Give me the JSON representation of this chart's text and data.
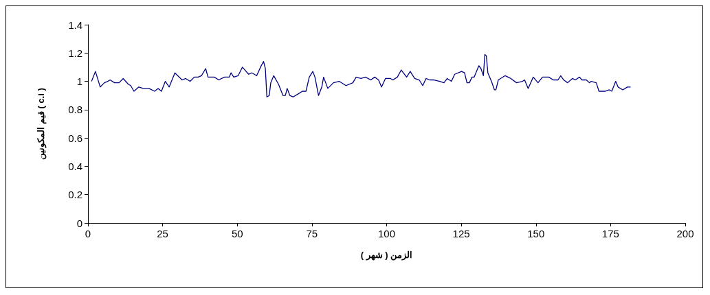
{
  "chart_data": {
    "type": "line",
    "xlabel": "الزمن ( شهر )",
    "ylabel": "قيم المكونين ( c.i )",
    "xlim": [
      0,
      200
    ],
    "xticks": [
      0,
      25,
      50,
      75,
      100,
      125,
      150,
      175,
      200
    ],
    "ylim": [
      0,
      1.4
    ],
    "yticks": [
      0,
      0.2,
      0.4,
      0.6,
      0.8,
      1,
      1.2,
      1.4
    ],
    "grid": false,
    "marker": "none",
    "line_style": "solid",
    "series": [
      {
        "color": "#000080",
        "x": [
          1.2,
          2.5,
          4.1,
          5.5,
          6.6,
          7.4,
          8.9,
          10.4,
          11.8,
          13.5,
          14.3,
          15.4,
          17,
          18.5,
          20.4,
          22.3,
          23.5,
          24.6,
          25.9,
          27.2,
          29.1,
          31.5,
          32.7,
          34.2,
          35.6,
          36.9,
          38,
          39.4,
          40.2,
          42.3,
          43.8,
          45.7,
          47.3,
          47.9,
          48.8,
          50.3,
          51.7,
          53.8,
          54.9,
          56.5,
          58,
          58.8,
          59.4,
          59.9,
          60.7,
          61.2,
          62.2,
          63.8,
          65.3,
          66.1,
          66.7,
          67.6,
          68.7,
          70.3,
          71.8,
          73,
          74.1,
          75.3,
          76,
          77.2,
          78.3,
          78.9,
          80.3,
          82.2,
          84.1,
          86.4,
          88.7,
          89.8,
          91.4,
          92.9,
          94.7,
          96,
          97.3,
          98.3,
          99.6,
          101.3,
          102.1,
          103.6,
          104.9,
          106.7,
          107.9,
          109.4,
          110.9,
          112.1,
          113.2,
          114.4,
          115.9,
          117.8,
          119.2,
          120.3,
          121.7,
          122.8,
          125.1,
          126.1,
          126.9,
          127.7,
          128.6,
          129.3,
          130.9,
          131.6,
          132.4,
          132.9,
          133.4,
          133.9,
          135.1,
          136.1,
          136.6,
          137.4,
          139.7,
          141.6,
          143.5,
          145.5,
          146.2,
          147.4,
          149.1,
          150.7,
          152.2,
          154.3,
          155.8,
          157.4,
          158.3,
          159.3,
          160.6,
          162.2,
          163.2,
          164.6,
          165.4,
          166.9,
          167.9,
          168.5,
          170.2,
          171.1,
          173.1,
          174.6,
          175.4,
          176.7,
          177.5,
          179.1,
          180.6,
          181.7
        ],
        "values": [
          1.0,
          1.07,
          0.96,
          0.99,
          1.0,
          1.01,
          0.99,
          0.99,
          1.02,
          0.98,
          0.97,
          0.93,
          0.96,
          0.95,
          0.95,
          0.93,
          0.95,
          0.93,
          1.0,
          0.96,
          1.06,
          1.01,
          1.02,
          1.0,
          1.03,
          1.03,
          1.04,
          1.09,
          1.03,
          1.03,
          1.01,
          1.03,
          1.03,
          1.06,
          1.03,
          1.04,
          1.1,
          1.05,
          1.06,
          1.04,
          1.11,
          1.14,
          1.09,
          0.89,
          0.9,
          0.99,
          1.04,
          0.98,
          0.9,
          0.9,
          0.95,
          0.9,
          0.89,
          0.91,
          0.93,
          0.93,
          1.03,
          1.07,
          1.03,
          0.9,
          0.96,
          1.03,
          0.95,
          0.99,
          1.0,
          0.97,
          0.99,
          1.03,
          1.02,
          1.03,
          1.01,
          1.03,
          1.01,
          0.96,
          1.02,
          1.02,
          1.01,
          1.03,
          1.08,
          1.03,
          1.07,
          1.02,
          1.01,
          0.97,
          1.02,
          1.01,
          1.01,
          1.0,
          0.99,
          1.02,
          1.0,
          1.05,
          1.07,
          1.06,
          0.99,
          0.99,
          1.03,
          1.03,
          1.11,
          1.09,
          1.04,
          1.19,
          1.18,
          1.06,
          1.0,
          0.94,
          0.94,
          1.01,
          1.04,
          1.02,
          0.99,
          1.0,
          1.01,
          0.95,
          1.03,
          0.99,
          1.03,
          1.03,
          1.01,
          1.01,
          1.04,
          1.01,
          0.99,
          1.02,
          1.01,
          1.03,
          1.01,
          1.01,
          0.99,
          1.0,
          0.99,
          0.93,
          0.93,
          0.94,
          0.93,
          1.0,
          0.96,
          0.94,
          0.96,
          0.96
        ]
      }
    ]
  }
}
